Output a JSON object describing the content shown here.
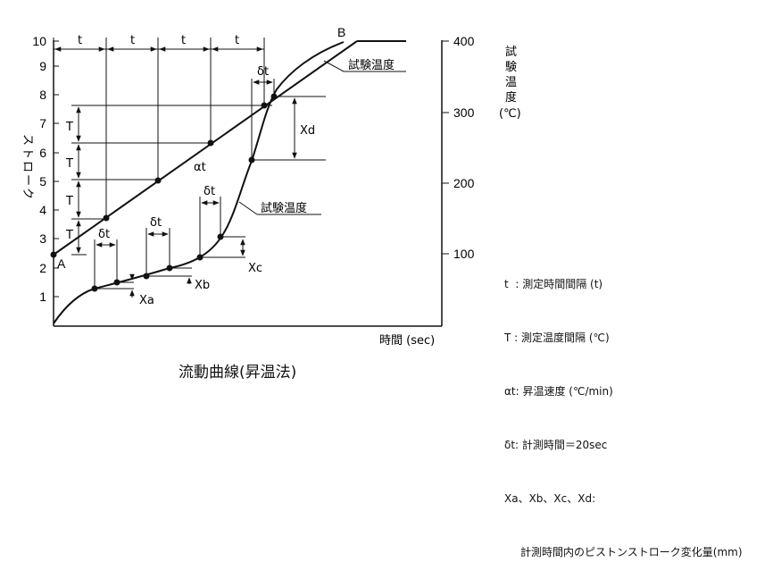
{
  "y_left_ticks": [
    "1",
    "2",
    "3",
    "4",
    "5",
    "6",
    "7",
    "8",
    "9",
    "10"
  ],
  "y_left_label": "ストローク",
  "y_right_ticks": [
    "100",
    "200",
    "300",
    "400"
  ],
  "y_right_label": [
    "試",
    "験",
    "温",
    "度"
  ],
  "y_right_unit": "(℃)",
  "x_label": "時間 (sec)",
  "interval_t": "t",
  "interval_T": "T",
  "point_A": "A",
  "point_B": "B",
  "delta_t": "δt",
  "alpha_t": "αt",
  "test_temp_label": "試験温度",
  "flow_curve_label": "試験温度",
  "x_markers": [
    "Xa",
    "Xb",
    "Xc",
    "Xd"
  ],
  "legend": [
    "t  : 測定時間間隔 (t)",
    "T : 測定温度間隔 (℃)",
    "αt: 昇温速度 (℃/min)",
    "δt: 計測時間＝20sec",
    "Xa、Xb、Xc、Xd:",
    "計測時間内のピストンストローク変化量(mm)"
  ],
  "caption": "流動曲線(昇温法)"
}
